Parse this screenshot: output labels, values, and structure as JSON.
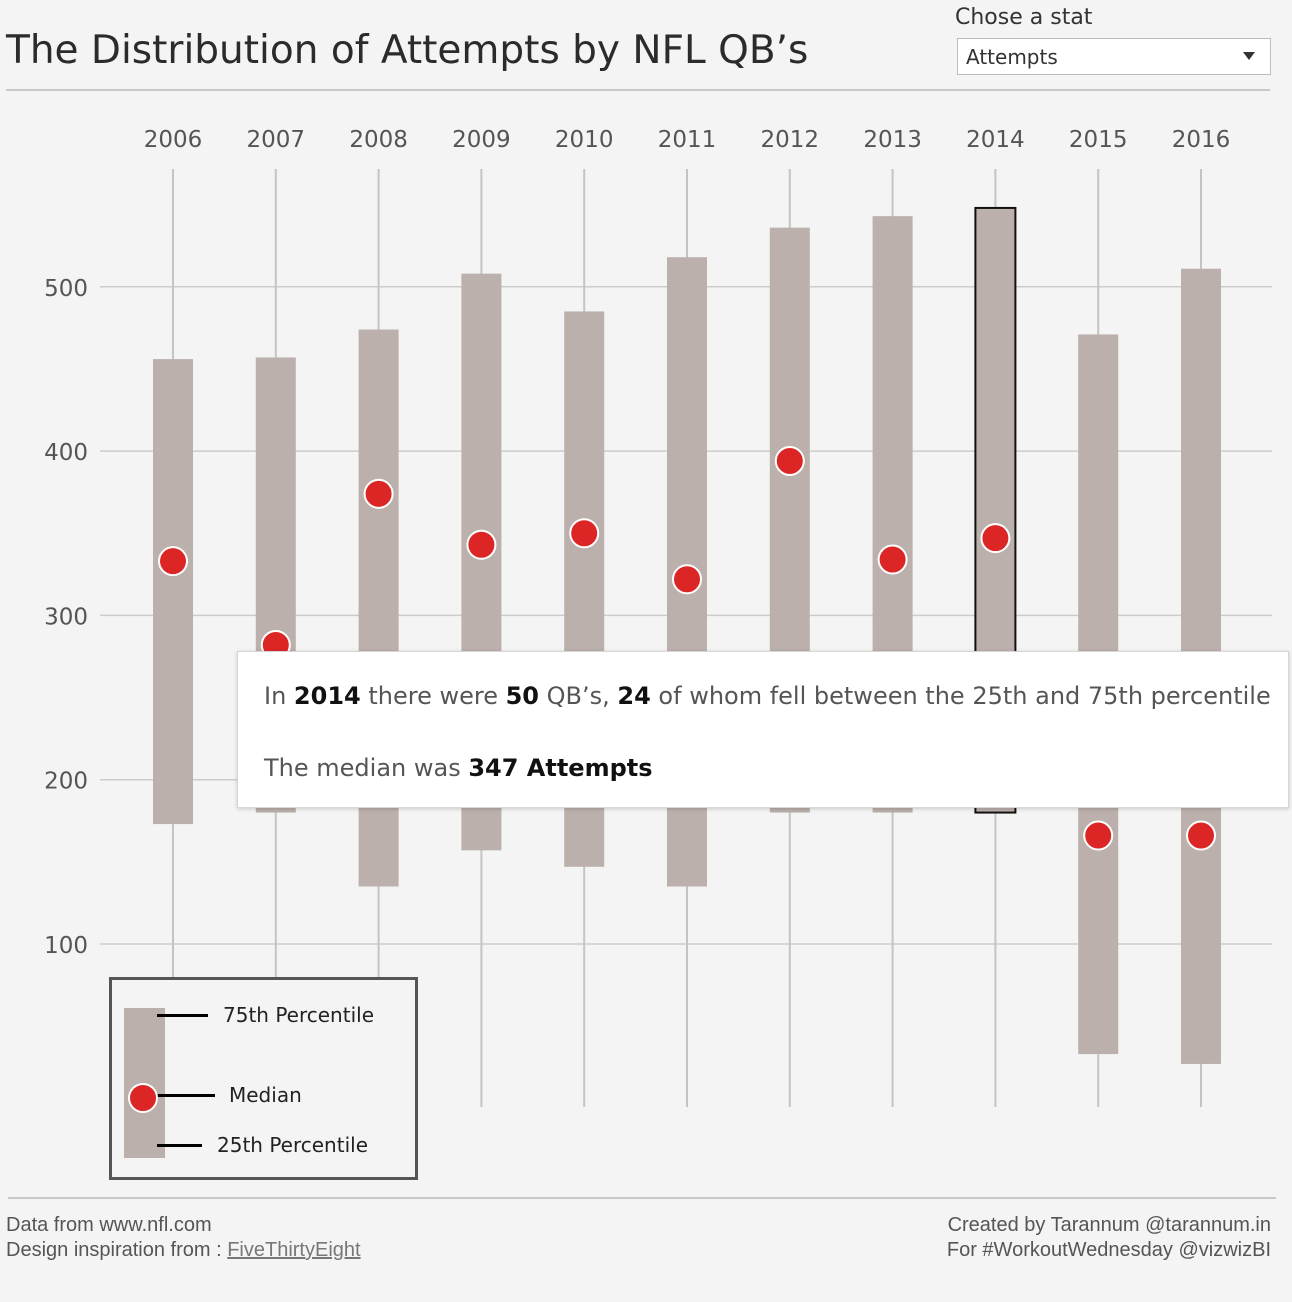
{
  "header": {
    "title": "The Distribution of Attempts by NFL QB’s",
    "stat_label": "Chose a stat",
    "stat_selected": "Attempts"
  },
  "chart_data": {
    "type": "box-range",
    "title": "The Distribution of Attempts by NFL QB’s",
    "categories": [
      "2006",
      "2007",
      "2008",
      "2009",
      "2010",
      "2011",
      "2012",
      "2013",
      "2014",
      "2015",
      "2016"
    ],
    "p75": [
      456,
      457,
      474,
      508,
      485,
      518,
      536,
      543,
      548,
      471,
      511
    ],
    "median": [
      333,
      282,
      374,
      343,
      350,
      322,
      394,
      334,
      347,
      166,
      166
    ],
    "p25": [
      173,
      180,
      135,
      157,
      147,
      135,
      180,
      180,
      180,
      33,
      27
    ],
    "highlighted": "2014",
    "yticks": [
      100,
      200,
      300,
      400,
      500
    ],
    "ylim": [
      -100,
      580
    ],
    "x_axis_position": "top",
    "grid": true,
    "colors": {
      "bar": "#bbb0ab",
      "median": "#dc2626",
      "grid": "#cccccc",
      "axis_text": "#555555"
    }
  },
  "tooltip": {
    "p1": "In ",
    "year": "2014",
    "p2": " there were ",
    "qb_count": "50",
    "p3": " QB’s, ",
    "between_count": "24",
    "p4": " of whom fell between the 25th and 75th percentile",
    "median_prefix": "The median was ",
    "median_value": "347 Attempts"
  },
  "legend": {
    "p75_label": "75th Percentile",
    "median_label": "Median",
    "p25_label": "25th Percentile"
  },
  "footer": {
    "data_from": "Data from www.nfl.com",
    "inspiration_prefix": "Design inspiration from : ",
    "inspiration_link": "FiveThirtyEight",
    "created_by": "Created by Tarannum @tarannum.in",
    "workout": "For #WorkoutWednesday @vizwizBI"
  }
}
